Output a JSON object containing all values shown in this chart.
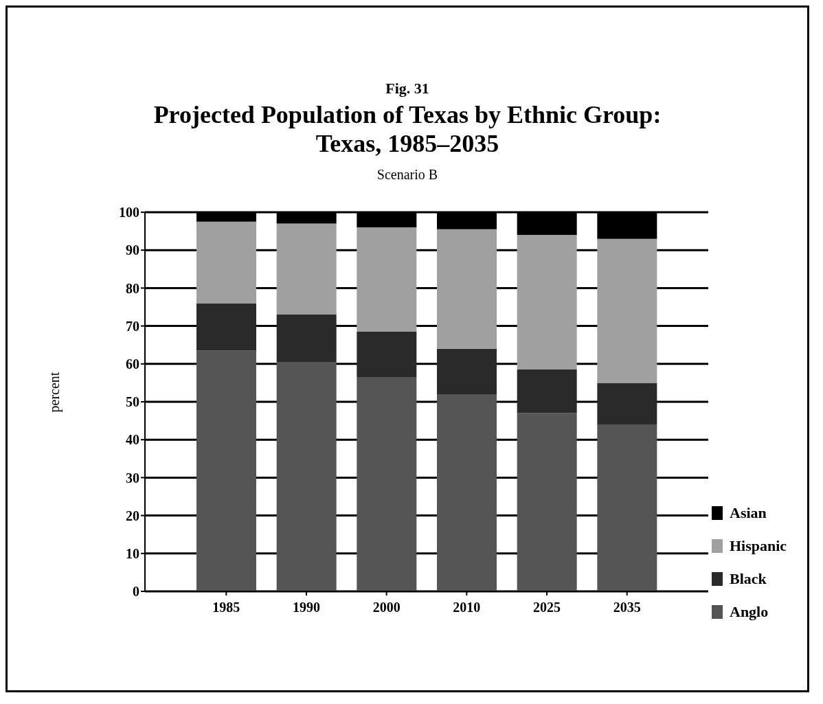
{
  "chart_data": {
    "type": "bar",
    "title": "Projected Population of Texas by Ethnic Group:\nTexas, 1985–2035",
    "subtitle": "Scenario B",
    "annotations": [
      "Fig. 31"
    ],
    "ylabel": "percent",
    "categories": [
      "1985",
      "1990",
      "2000",
      "2010",
      "2025",
      "2035"
    ],
    "stacked": true,
    "series": [
      {
        "name": "Anglo",
        "color": "#555555",
        "values": [
          63.5,
          60.5,
          56.5,
          52,
          47,
          44
        ]
      },
      {
        "name": "Black",
        "color": "#2a2a2a",
        "values": [
          12.5,
          12.5,
          12,
          12,
          11.5,
          11
        ]
      },
      {
        "name": "Hispanic",
        "color": "#a0a0a0",
        "values": [
          21.5,
          24,
          27.5,
          31.5,
          35.5,
          38
        ]
      },
      {
        "name": "Asian",
        "color": "#000000",
        "values": [
          2.5,
          3,
          4,
          4.5,
          6,
          7
        ]
      }
    ],
    "ylim": [
      0,
      100
    ],
    "yticks": [
      0,
      10,
      20,
      30,
      40,
      50,
      60,
      70,
      80,
      90,
      100
    ],
    "grid": "y",
    "legend": "right"
  }
}
